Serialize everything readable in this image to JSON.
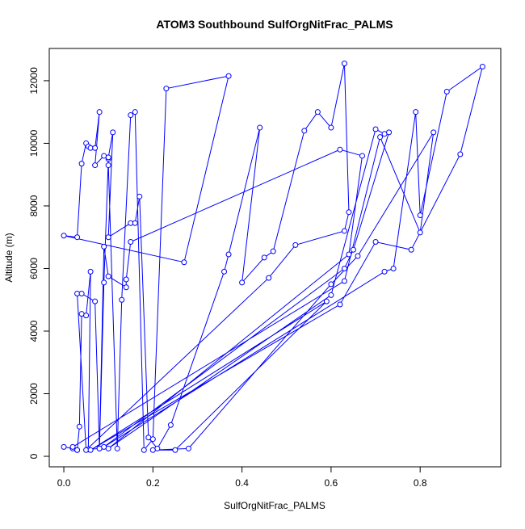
{
  "chart_data": {
    "type": "line",
    "title": "ATOM3 Southbound SulfOrgNitFrac_PALMS",
    "x_label": "SulfOrgNitFrac_PALMS",
    "y_label": "Altitude (m)",
    "color": "#0000ff",
    "x": [
      0.0,
      0.02,
      0.03,
      0.035,
      0.04,
      0.05,
      0.06,
      0.055,
      0.08,
      0.09,
      0.1,
      0.1,
      0.12,
      0.13,
      0.15,
      0.16,
      0.18,
      0.2,
      0.23,
      0.37,
      0.27,
      0.0,
      0.03,
      0.04,
      0.05,
      0.055,
      0.06,
      0.07,
      0.08,
      0.07,
      0.09,
      0.1,
      0.11,
      0.1,
      0.15,
      0.16,
      0.17,
      0.19,
      0.21,
      0.24,
      0.36,
      0.37,
      0.44,
      0.4,
      0.45,
      0.47,
      0.54,
      0.57,
      0.6,
      0.63,
      0.64,
      0.63,
      0.52,
      0.46,
      0.05,
      0.03,
      0.04,
      0.07,
      0.08,
      0.09,
      0.1,
      0.14,
      0.14,
      0.15,
      0.62,
      0.67,
      0.64,
      0.1,
      0.6,
      0.7,
      0.72,
      0.73,
      0.65,
      0.63,
      0.09,
      0.72,
      0.74,
      0.79,
      0.8,
      0.86,
      0.94,
      0.89,
      0.78,
      0.7,
      0.62,
      0.06,
      0.59,
      0.25,
      0.2,
      0.28,
      0.6,
      0.66,
      0.83,
      0.8,
      0.71,
      0.63,
      0.02,
      0.03
    ],
    "values": [
      300,
      250,
      200,
      950,
      4550,
      4500,
      5900,
      220,
      250,
      5550,
      9500,
      9300,
      250,
      5000,
      10900,
      11000,
      200,
      550,
      11750,
      12150,
      6200,
      7050,
      7000,
      9350,
      10000,
      9900,
      9850,
      9850,
      11000,
      9300,
      9600,
      9550,
      10350,
      7000,
      7450,
      7450,
      8300,
      600,
      250,
      1000,
      5900,
      6450,
      10500,
      5550,
      6350,
      6550,
      10400,
      11000,
      10500,
      12550,
      7800,
      7200,
      6750,
      5700,
      200,
      5200,
      5200,
      4950,
      250,
      6700,
      5750,
      5400,
      5650,
      6850,
      9800,
      9600,
      6450,
      250,
      5150,
      10450,
      10300,
      10350,
      6600,
      6000,
      300,
      5900,
      6000,
      11000,
      7700,
      11650,
      12450,
      9650,
      6600,
      6850,
      4850,
      200,
      4950,
      200,
      200,
      250,
      5500,
      6400,
      10350,
      7150,
      10200,
      5600,
      300,
      200
    ],
    "xlim": [
      -0.0327,
      0.981
    ],
    "ylim": [
      -335,
      13030
    ],
    "xticks": [
      {
        "value": 0,
        "label": "0.0"
      },
      0.2,
      0.4,
      0.6,
      0.8
    ],
    "yticks": [
      0,
      2000,
      4000,
      6000,
      8000,
      10000,
      12000
    ]
  }
}
